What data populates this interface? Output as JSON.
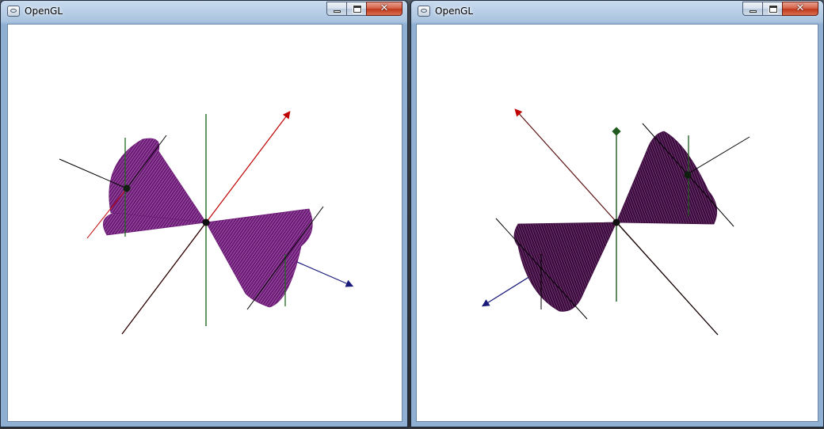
{
  "windows": [
    {
      "title": "OpenGL"
    },
    {
      "title": "OpenGL"
    }
  ],
  "controls": {
    "close_glyph": "✕"
  },
  "icons": [
    "opengl-app-icon",
    "minimize-icon",
    "maximize-icon",
    "close-icon"
  ],
  "colors": {
    "cone_left": "#6e1a78",
    "cone_right": "#3e0a40",
    "axis_red": "#c00000",
    "axis_green": "#1f6a1f",
    "axis_blue": "#1a1a7a",
    "axis_black": "#000000",
    "background": "#ffffff"
  }
}
